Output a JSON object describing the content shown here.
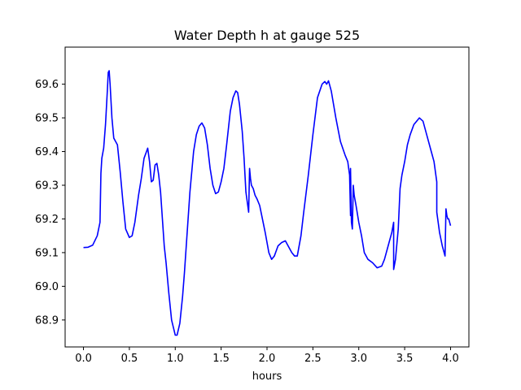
{
  "chart_data": {
    "type": "line",
    "title": "Water Depth h at gauge 525",
    "xlabel": "hours",
    "ylabel": "",
    "xlim": [
      -0.2,
      4.2
    ],
    "ylim": [
      68.82,
      69.71
    ],
    "grid": false,
    "x_ticks": [
      "0.0",
      "0.5",
      "1.0",
      "1.5",
      "2.0",
      "2.5",
      "3.0",
      "3.5",
      "4.0"
    ],
    "y_ticks": [
      "68.9",
      "69.0",
      "69.1",
      "69.2",
      "69.3",
      "69.4",
      "69.5",
      "69.6"
    ],
    "series": [
      {
        "color": "#0000ff",
        "x": [
          0.0,
          0.05,
          0.1,
          0.15,
          0.18,
          0.19,
          0.2,
          0.22,
          0.24,
          0.26,
          0.27,
          0.28,
          0.29,
          0.31,
          0.33,
          0.35,
          0.37,
          0.4,
          0.43,
          0.46,
          0.5,
          0.53,
          0.56,
          0.6,
          0.63,
          0.66,
          0.7,
          0.72,
          0.74,
          0.76,
          0.78,
          0.8,
          0.82,
          0.84,
          0.86,
          0.88,
          0.9,
          0.93,
          0.96,
          1.0,
          1.02,
          1.05,
          1.08,
          1.1,
          1.13,
          1.16,
          1.2,
          1.23,
          1.26,
          1.29,
          1.32,
          1.35,
          1.38,
          1.41,
          1.44,
          1.47,
          1.5,
          1.53,
          1.56,
          1.6,
          1.63,
          1.66,
          1.68,
          1.7,
          1.73,
          1.75,
          1.77,
          1.78,
          1.8,
          1.81,
          1.82,
          1.83,
          1.85,
          1.87,
          1.89,
          1.92,
          1.95,
          1.98,
          2.02,
          2.05,
          2.08,
          2.12,
          2.16,
          2.2,
          2.23,
          2.27,
          2.3,
          2.33,
          2.37,
          2.4,
          2.45,
          2.5,
          2.55,
          2.6,
          2.63,
          2.65,
          2.67,
          2.7,
          2.75,
          2.8,
          2.85,
          2.88,
          2.9,
          2.91,
          2.91,
          2.92,
          2.93,
          2.94,
          2.95,
          2.97,
          3.0,
          3.03,
          3.06,
          3.1,
          3.15,
          3.2,
          3.25,
          3.28,
          3.32,
          3.36,
          3.38,
          3.38,
          3.4,
          3.43,
          3.45,
          3.47,
          3.5,
          3.53,
          3.56,
          3.6,
          3.63,
          3.66,
          3.7,
          3.74,
          3.78,
          3.82,
          3.85,
          3.85,
          3.88,
          3.91,
          3.94,
          3.95,
          3.96,
          3.97,
          3.98,
          3.99,
          4.0
        ],
        "y": [
          69.115,
          69.116,
          69.122,
          69.15,
          69.19,
          69.335,
          69.38,
          69.41,
          69.48,
          69.58,
          69.635,
          69.64,
          69.6,
          69.5,
          69.44,
          69.43,
          69.42,
          69.34,
          69.25,
          69.17,
          69.145,
          69.15,
          69.19,
          69.27,
          69.32,
          69.38,
          69.41,
          69.37,
          69.31,
          69.315,
          69.36,
          69.365,
          69.33,
          69.28,
          69.2,
          69.12,
          69.07,
          68.98,
          68.9,
          68.855,
          68.855,
          68.89,
          68.97,
          69.04,
          69.16,
          69.28,
          69.4,
          69.45,
          69.475,
          69.485,
          69.47,
          69.42,
          69.35,
          69.3,
          69.275,
          69.28,
          69.31,
          69.35,
          69.42,
          69.52,
          69.56,
          69.58,
          69.575,
          69.54,
          69.46,
          69.38,
          69.28,
          69.26,
          69.22,
          69.35,
          69.32,
          69.3,
          69.29,
          69.27,
          69.26,
          69.24,
          69.2,
          69.16,
          69.1,
          69.08,
          69.09,
          69.12,
          69.13,
          69.135,
          69.12,
          69.1,
          69.09,
          69.09,
          69.15,
          69.22,
          69.33,
          69.45,
          69.56,
          69.6,
          69.608,
          69.6,
          69.61,
          69.58,
          69.5,
          69.43,
          69.39,
          69.37,
          69.33,
          69.21,
          69.35,
          69.19,
          69.17,
          69.3,
          69.27,
          69.24,
          69.19,
          69.15,
          69.1,
          69.08,
          69.07,
          69.055,
          69.06,
          69.08,
          69.12,
          69.16,
          69.19,
          69.05,
          69.08,
          69.17,
          69.29,
          69.33,
          69.37,
          69.42,
          69.45,
          69.48,
          69.49,
          69.5,
          69.49,
          69.45,
          69.41,
          69.37,
          69.31,
          69.22,
          69.16,
          69.12,
          69.09,
          69.23,
          69.21,
          69.2,
          69.2,
          69.19,
          69.18
        ]
      }
    ]
  }
}
